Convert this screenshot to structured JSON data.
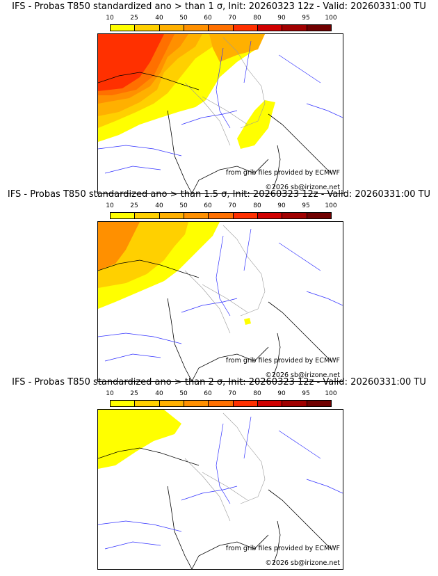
{
  "colorbar": {
    "labels": [
      "10",
      "25",
      "40",
      "50",
      "60",
      "70",
      "80",
      "90",
      "95",
      "100"
    ],
    "colors": [
      "#ffff00",
      "#ffd000",
      "#ffb000",
      "#ff9000",
      "#ff7000",
      "#ff3000",
      "#d00000",
      "#a00000",
      "#700000"
    ]
  },
  "panels": [
    {
      "title": "IFS - Probas T850  standardized ano > than 1 σ, Init: 20260323 12z - Valid: 20260331:00 TU",
      "credit_source": "from grib files provided by ECMWF",
      "credit_copyright": "©2026 sb@irizone.net"
    },
    {
      "title": "IFS - Probas T850  standardized ano > than 1.5 σ, Init: 20260323 12z - Valid: 20260331:00 TU",
      "credit_source": "from grib files provided by ECMWF",
      "credit_copyright": "©2026 sb@irizone.net"
    },
    {
      "title": "IFS - Probas T850  standardized ano > than 2 σ, Init: 20260323 12z - Valid: 20260331:00 TU",
      "credit_source": "from grib files provided by ECMWF",
      "credit_copyright": "©2026 sb@irizone.net"
    }
  ]
}
